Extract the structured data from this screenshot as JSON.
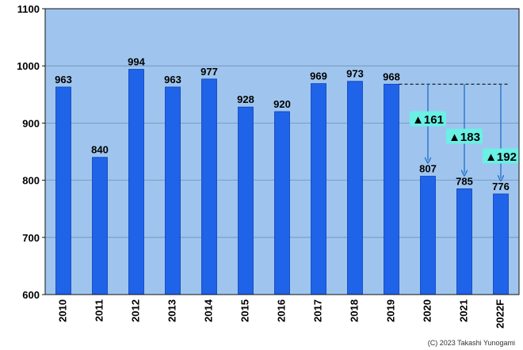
{
  "colors": {
    "plot_bg": "#9fc5ee",
    "bar": "#1f63e8",
    "bar_edge": "#0a3fb8",
    "callout_bg": "#6af0e4",
    "arrow": "#2a73c8",
    "text": "#000000"
  },
  "chart_data": {
    "type": "bar",
    "categories": [
      "2010",
      "2011",
      "2012",
      "2013",
      "2014",
      "2015",
      "2016",
      "2017",
      "2018",
      "2019",
      "2020",
      "2021",
      "2022F"
    ],
    "values": [
      963,
      840,
      994,
      963,
      977,
      928,
      920,
      969,
      973,
      968,
      807,
      785,
      776
    ],
    "value_labels": [
      "963",
      "840",
      "994",
      "963",
      "977",
      "928",
      "920",
      "969",
      "973",
      "968",
      "807",
      "785",
      "776"
    ],
    "ylim": [
      600,
      1100
    ],
    "yticks": [
      600,
      700,
      800,
      900,
      1000,
      1100
    ],
    "ytick_labels": [
      "600",
      "700",
      "800",
      "900",
      "1000",
      "1100"
    ],
    "grid": true,
    "reference": {
      "from_category": "2019",
      "value": 968
    },
    "annotations": [
      {
        "category": "2020",
        "text": "▲161",
        "value": 161
      },
      {
        "category": "2021",
        "text": "▲183",
        "value": 183
      },
      {
        "category": "2022F",
        "text": "▲192",
        "value": 192
      }
    ]
  },
  "footer": {
    "credit": "(C) 2023 Takashi Yunogami"
  }
}
